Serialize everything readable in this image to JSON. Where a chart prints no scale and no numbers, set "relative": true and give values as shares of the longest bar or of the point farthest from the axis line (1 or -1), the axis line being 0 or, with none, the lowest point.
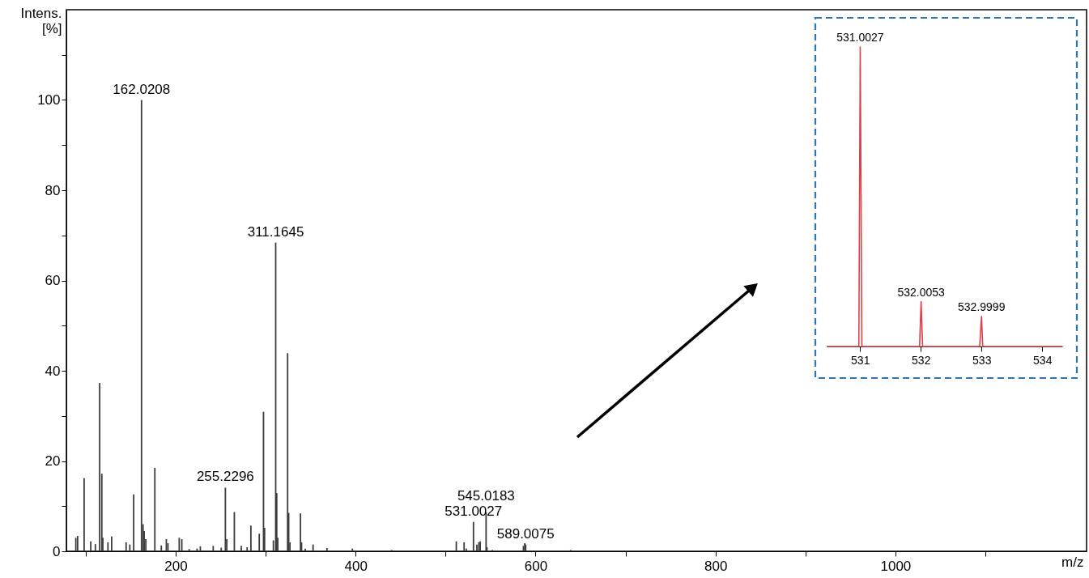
{
  "chart_data": [
    {
      "type": "bar",
      "xlabel": "m/z",
      "ylabel": "Intens.\n[%]",
      "color": "#3c3c3c",
      "grid": false,
      "x": [
        89,
        91,
        98.2,
        105.6,
        110.7,
        115.5,
        117.9,
        119,
        124.7,
        128.8,
        144.9,
        149,
        153.3,
        162.0208,
        163.7,
        165,
        166.8,
        176.8,
        184,
        189.6,
        191.4,
        203.9,
        206.8,
        215,
        223.8,
        227.4,
        241.7,
        250.6,
        255.2296,
        256.8,
        265.2,
        272.9,
        279.4,
        283.6,
        292.9,
        297.6,
        298.8,
        308.6,
        311.1645,
        312.3,
        313.5,
        324.4,
        325.6,
        327,
        338.7,
        339.9,
        344,
        352.7,
        368.2,
        396.4,
        440,
        511.9,
        520.6,
        523,
        531.0027,
        534.8,
        537,
        538.5,
        545.0183,
        546,
        552,
        586.5,
        588,
        589.0075,
        639
      ],
      "values": [
        3,
        3.4,
        16.2,
        2.2,
        1.6,
        37.3,
        17.2,
        3,
        2,
        3.3,
        2,
        1.5,
        12.6,
        100,
        6,
        4.5,
        2.7,
        18.5,
        1.3,
        2.7,
        1.8,
        3,
        2.7,
        0.5,
        0.6,
        1.1,
        1.2,
        0.8,
        14.1,
        2.7,
        8.7,
        1.2,
        0.9,
        5.7,
        3.9,
        30.9,
        5.2,
        2.4,
        68.4,
        12.9,
        3,
        43.9,
        8.5,
        2,
        8.4,
        2,
        0.6,
        1.5,
        0.7,
        0.6,
        0.3,
        2.2,
        2,
        0.6,
        6.5,
        1.5,
        2,
        2.2,
        8.6,
        0.9,
        0.3,
        1.2,
        1.8,
        1.5,
        0.3
      ],
      "xlim": [
        83,
        1208
      ],
      "ylim": [
        0,
        120
      ],
      "xticks": [
        {
          "value": 100,
          "label": null
        },
        200,
        {
          "value": 300,
          "label": null
        },
        400,
        {
          "value": 500,
          "label": null
        },
        600,
        {
          "value": 700,
          "label": null
        },
        800,
        {
          "value": 900,
          "label": null
        },
        1000,
        {
          "value": 1100,
          "label": null
        }
      ],
      "yticks": [
        0,
        {
          "value": 10,
          "label": null
        },
        20,
        {
          "value": 30,
          "label": null
        },
        40,
        {
          "value": 50,
          "label": null
        },
        60,
        {
          "value": 70,
          "label": null
        },
        80,
        {
          "value": 90,
          "label": null
        },
        100,
        {
          "value": 110,
          "label": null
        }
      ],
      "annotations": [
        {
          "text": "162.0208",
          "x": 162.0208,
          "y": 100
        },
        {
          "text": "311.1645",
          "x": 311.1645,
          "y": 68.4
        },
        {
          "text": "255.2296",
          "x": 255.2296,
          "y": 14.1
        },
        {
          "text": "531.0027",
          "x": 531.0027,
          "y": 6.5
        },
        {
          "text": "545.0183",
          "x": 545.0183,
          "y": 8.6
        },
        {
          "text": "589.0075",
          "x": 589.0075,
          "y": 1.5
        }
      ]
    },
    {
      "type": "line",
      "relative": true,
      "x": [
        530.45,
        530.98,
        531.0027,
        531.03,
        531.98,
        532.0053,
        532.03,
        532.97,
        532.9999,
        533.02,
        534.33
      ],
      "series": [
        {
          "color": "#e0404a",
          "values": [
            0,
            0,
            1,
            0,
            0,
            0.15,
            0,
            0,
            0.1,
            0,
            0
          ]
        }
      ],
      "xlim": [
        530.45,
        534.33
      ],
      "xticks": [
        531,
        532,
        533,
        534
      ],
      "annotations": [
        {
          "text": "531.0027",
          "x": 531.0027,
          "y": 1
        },
        {
          "text": "532.0053",
          "x": 532.0053,
          "y": 0.15
        },
        {
          "text": "532.9999",
          "x": 532.9999,
          "y": 0.1
        }
      ]
    }
  ]
}
